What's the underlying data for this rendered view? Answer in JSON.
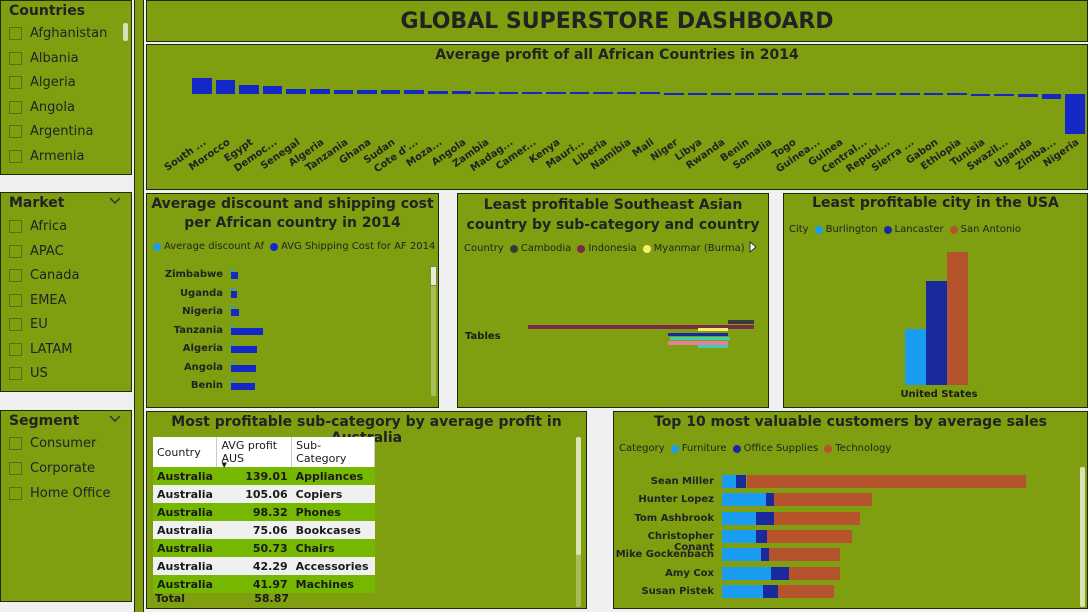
{
  "title": "GLOBAL SUPERSTORE DASHBOARD",
  "slicers": {
    "countries": {
      "title": "Countries",
      "items": [
        "Afghanistan",
        "Albania",
        "Algeria",
        "Angola",
        "Argentina",
        "Armenia"
      ]
    },
    "market": {
      "title": "Market",
      "items": [
        "Africa",
        "APAC",
        "Canada",
        "EMEA",
        "EU",
        "LATAM",
        "US"
      ]
    },
    "segment": {
      "title": "Segment",
      "items": [
        "Consumer",
        "Corporate",
        "Home Office"
      ]
    }
  },
  "colors": {
    "bg": "#7f9f11",
    "bar_blue": "#1428c8",
    "furniture": "#1a9cf0",
    "office": "#1a2a9c",
    "technology": "#b5542c",
    "indonesia": "#7a2a4a",
    "myanmar": "#f4f06a",
    "cambodia": "#3a3a3a",
    "lightblue": "#1a9cf0",
    "pink": "#e87ea0",
    "teal": "#3ad0b0"
  },
  "charts": {
    "africa_profit": {
      "title": "Average profit of all African Countries in 2014",
      "chart_data": {
        "type": "bar",
        "categories": [
          "South ...",
          "Morocco",
          "Egypt",
          "Democ...",
          "Senegal",
          "Algeria",
          "Tanzania",
          "Ghana",
          "Sudan",
          "Cote d'...",
          "Moza...",
          "Angola",
          "Zambia",
          "Madag...",
          "Camer...",
          "Kenya",
          "Mauri...",
          "Liberia",
          "Namibia",
          "Mali",
          "Niger",
          "Libya",
          "Rwanda",
          "Benin",
          "Somalia",
          "Togo",
          "Guinea...",
          "Guinea",
          "Central...",
          "Republ...",
          "Sierra ...",
          "Gabon",
          "Ethiopia",
          "Tunisia",
          "Swazil...",
          "Uganda",
          "Zimba...",
          "Nigeria"
        ],
        "values": [
          16,
          14,
          9,
          8,
          5,
          5,
          4,
          4,
          4,
          4,
          3,
          3,
          2,
          2,
          2,
          2,
          2,
          2,
          2,
          2,
          1,
          1,
          1,
          1,
          1,
          1,
          1,
          1,
          1,
          1,
          1,
          1,
          1,
          0,
          0,
          -3,
          -5,
          -40
        ]
      }
    },
    "discount_shipping": {
      "title": "Average discount and shipping cost per African country in 2014",
      "legend": [
        "Average discount Af",
        "AVG Shipping Cost for AF 2014"
      ],
      "chart_data": {
        "type": "bar",
        "categories": [
          "Zimbabwe",
          "Uganda",
          "Nigeria",
          "Tanzania",
          "Algeria",
          "Angola",
          "Benin"
        ],
        "series": [
          {
            "name": "Average discount Af",
            "values": [
              0.3,
              0.3,
              0.3,
              0.3,
              0.3,
              0.3,
              0.3
            ]
          },
          {
            "name": "AVG Shipping Cost for AF 2014",
            "values": [
              9,
              8,
              10,
              41,
              33,
              32,
              31
            ]
          }
        ]
      }
    },
    "sea": {
      "title": "Least profitable Southeast Asian country by sub-category and country",
      "legend_label": "Country",
      "legend": [
        "Cambodia",
        "Indonesia",
        "Myanmar (Burma)"
      ],
      "category_label": "Tables",
      "chart_data": {
        "type": "bar",
        "categories": [
          "Tables"
        ],
        "series": [
          {
            "name": "Indonesia",
            "values": [
              -200
            ]
          },
          {
            "name": "Cambodia",
            "values": [
              25
            ]
          },
          {
            "name": "Myanmar (Burma)",
            "values": [
              -30
            ]
          }
        ]
      }
    },
    "usa_city": {
      "title": "Least profitable city in the USA",
      "legend_label": "City",
      "legend": [
        "Burlington",
        "Lancaster",
        "San Antonio"
      ],
      "category_label": "United States",
      "chart_data": {
        "type": "bar",
        "categories": [
          "United States"
        ],
        "series": [
          {
            "name": "Burlington",
            "values": [
              56
            ]
          },
          {
            "name": "Lancaster",
            "values": [
              104
            ]
          },
          {
            "name": "San Antonio",
            "values": [
              133
            ]
          }
        ]
      }
    },
    "australia": {
      "title": "Most profitable sub-category by average profit in Australia",
      "headers": [
        "Country",
        "AVG profit AUS",
        "Sub-Category"
      ],
      "rows": [
        [
          "Australia",
          "139.01",
          "Appliances"
        ],
        [
          "Australia",
          "105.06",
          "Copiers"
        ],
        [
          "Australia",
          "98.32",
          "Phones"
        ],
        [
          "Australia",
          "75.06",
          "Bookcases"
        ],
        [
          "Australia",
          "50.73",
          "Chairs"
        ],
        [
          "Australia",
          "42.29",
          "Accessories"
        ],
        [
          "Australia",
          "41.97",
          "Machines"
        ]
      ],
      "total_label": "Total",
      "total_value": "58.87"
    },
    "customers": {
      "title": "Top 10 most valuable customers by average sales",
      "legend_label": "Category",
      "legend": [
        "Furniture",
        "Office Supplies",
        "Technology"
      ],
      "chart_data": {
        "type": "bar",
        "categories": [
          "Sean Miller",
          "Hunter Lopez",
          "Tom Ashbrook",
          "Christopher Conant",
          "Mike Gockenbach",
          "Amy Cox",
          "Susan Pistek"
        ],
        "series": [
          {
            "name": "Furniture",
            "values": [
              14,
              45,
              35,
              35,
              40,
              50,
              42
            ]
          },
          {
            "name": "Office Supplies",
            "values": [
              11,
              8,
              18,
              11,
              8,
              18,
              15
            ]
          },
          {
            "name": "Technology",
            "values": [
              285,
              100,
              88,
              87,
              72,
              52,
              57
            ]
          }
        ]
      }
    }
  }
}
